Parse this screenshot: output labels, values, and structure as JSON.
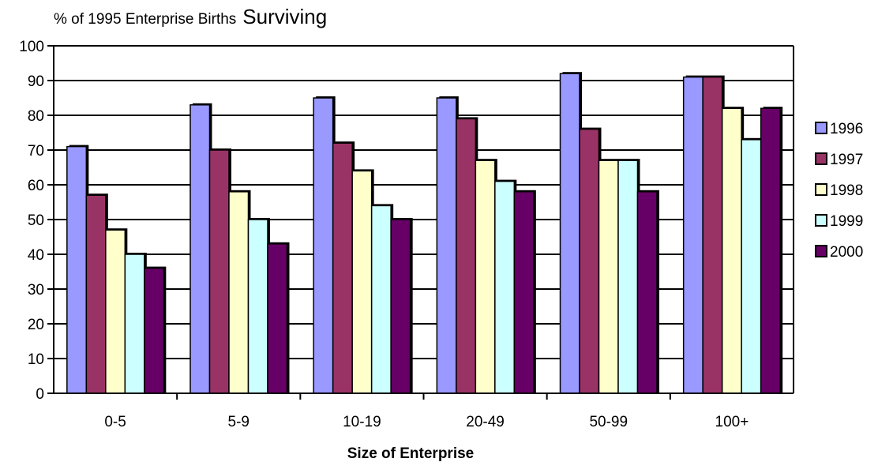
{
  "chart_data": {
    "type": "bar",
    "title_part1": "% of 1995 Enterprise Births",
    "title_part2": "Surviving",
    "xlabel": "Size of Enterprise",
    "ylabel": "",
    "categories": [
      "0-5",
      "5-9",
      "10-19",
      "20-49",
      "50-99",
      "100+"
    ],
    "ylim": [
      0,
      100
    ],
    "yticks": [
      0,
      10,
      20,
      30,
      40,
      50,
      60,
      70,
      80,
      90,
      100
    ],
    "grid": true,
    "legend_position": "right",
    "series": [
      {
        "name": "1996",
        "color": "#9999ff",
        "values": [
          71,
          83,
          85,
          85,
          92,
          91
        ]
      },
      {
        "name": "1997",
        "color": "#993366",
        "values": [
          57,
          70,
          72,
          79,
          76,
          91
        ]
      },
      {
        "name": "1998",
        "color": "#ffffcc",
        "values": [
          47,
          58,
          64,
          67,
          67,
          82
        ]
      },
      {
        "name": "1999",
        "color": "#ccffff",
        "values": [
          40,
          50,
          54,
          61,
          67,
          73
        ]
      },
      {
        "name": "2000",
        "color": "#660066",
        "values": [
          36,
          43,
          50,
          58,
          58,
          82
        ]
      }
    ]
  }
}
